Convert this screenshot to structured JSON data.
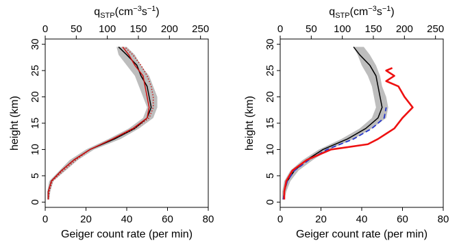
{
  "chart_data": [
    {
      "type": "line",
      "title": "",
      "xlabel": "Geiger count rate (per min)",
      "ylabel": "height (km)",
      "top_label": {
        "main": "q",
        "sub": "STP",
        "unit": "(cm",
        "exp1": "−3",
        "mid": "s",
        "exp2": "−1",
        "close": ")"
      },
      "xlim": [
        0,
        80
      ],
      "ylim": [
        -1,
        31
      ],
      "xticks": [
        "0",
        "20",
        "40",
        "60",
        "80"
      ],
      "yticks": [
        "0",
        "5",
        "10",
        "15",
        "20",
        "25",
        "30"
      ],
      "top_xticks": [
        "0",
        "50",
        "100",
        "150",
        "200",
        "250"
      ],
      "grid": false,
      "band": {
        "color": "#bdbdbd",
        "lower": [
          [
            1,
            0.5
          ],
          [
            1,
            2
          ],
          [
            2,
            4
          ],
          [
            7,
            6
          ],
          [
            12,
            8
          ],
          [
            20,
            10
          ],
          [
            31,
            12
          ],
          [
            41,
            14
          ],
          [
            48,
            16
          ],
          [
            50,
            18
          ],
          [
            48,
            20
          ],
          [
            46,
            22
          ],
          [
            44,
            24
          ],
          [
            40,
            26
          ],
          [
            36,
            28
          ],
          [
            35,
            29.5
          ]
        ],
        "upper": [
          [
            2,
            0.5
          ],
          [
            2.5,
            2
          ],
          [
            4,
            4
          ],
          [
            10,
            6
          ],
          [
            16,
            8
          ],
          [
            24,
            10
          ],
          [
            37,
            12
          ],
          [
            46,
            14
          ],
          [
            53,
            16
          ],
          [
            55,
            18
          ],
          [
            55,
            20
          ],
          [
            53,
            22
          ],
          [
            51,
            24
          ],
          [
            47,
            26
          ],
          [
            44,
            28
          ],
          [
            40,
            29.5
          ]
        ]
      },
      "series": [
        {
          "color": "#000000",
          "dash": "solid",
          "points": [
            [
              1.5,
              0.5
            ],
            [
              1.5,
              2
            ],
            [
              3,
              4
            ],
            [
              8,
              6
            ],
            [
              14,
              8
            ],
            [
              22,
              10
            ],
            [
              34,
              12
            ],
            [
              44,
              14
            ],
            [
              50,
              16
            ],
            [
              52,
              18
            ],
            [
              51,
              20
            ],
            [
              50,
              22
            ],
            [
              47,
              24
            ],
            [
              45,
              26
            ],
            [
              40,
              28
            ],
            [
              36,
              29.5
            ]
          ]
        },
        {
          "color": "#cc1111",
          "dash": "solid",
          "points": [
            [
              1.5,
              0.5
            ],
            [
              1.5,
              2
            ],
            [
              3,
              4
            ],
            [
              8,
              6
            ],
            [
              14,
              8
            ],
            [
              22,
              10
            ],
            [
              33,
              12
            ],
            [
              43,
              14
            ],
            [
              50,
              16
            ],
            [
              51,
              18
            ],
            [
              50,
              20
            ],
            [
              49,
              22
            ],
            [
              48,
              24
            ],
            [
              44,
              26
            ],
            [
              41,
              28
            ],
            [
              38,
              29.5
            ]
          ]
        },
        {
          "color": "#cc1111",
          "dash": "dotted",
          "points": [
            [
              1.5,
              0.5
            ],
            [
              2,
              2
            ],
            [
              3.5,
              4
            ],
            [
              9,
              6
            ],
            [
              15,
              8
            ],
            [
              22,
              10
            ],
            [
              33,
              12
            ],
            [
              44,
              14
            ],
            [
              51,
              16
            ],
            [
              53,
              18
            ],
            [
              53,
              20
            ],
            [
              52,
              22
            ],
            [
              50,
              24
            ],
            [
              47,
              26
            ],
            [
              43,
              28
            ],
            [
              39,
              29.5
            ]
          ]
        }
      ]
    },
    {
      "type": "line",
      "title": "",
      "xlabel": "Geiger count rate (per min)",
      "ylabel": "height (km)",
      "top_label": {
        "main": "q",
        "sub": "STP",
        "unit": "(cm",
        "exp1": "−3",
        "mid": "s",
        "exp2": "−1",
        "close": ")"
      },
      "xlim": [
        0,
        80
      ],
      "ylim": [
        -1,
        31
      ],
      "xticks": [
        "0",
        "20",
        "40",
        "60",
        "80"
      ],
      "yticks": [
        "0",
        "5",
        "10",
        "15",
        "20",
        "25",
        "30"
      ],
      "top_xticks": [
        "0",
        "50",
        "100",
        "150",
        "200",
        "250"
      ],
      "grid": false,
      "band": {
        "color": "#bdbdbd",
        "lower": [
          [
            1,
            0.5
          ],
          [
            1,
            2
          ],
          [
            2,
            4
          ],
          [
            5,
            6
          ],
          [
            11,
            8
          ],
          [
            19,
            10
          ],
          [
            30,
            12
          ],
          [
            39,
            14
          ],
          [
            45,
            16
          ],
          [
            47,
            18
          ],
          [
            46,
            20
          ],
          [
            45,
            22
          ],
          [
            43,
            24
          ],
          [
            40,
            26
          ],
          [
            38,
            28
          ],
          [
            36,
            29.5
          ]
        ],
        "upper": [
          [
            2,
            0.5
          ],
          [
            3,
            2
          ],
          [
            5,
            4
          ],
          [
            9,
            6
          ],
          [
            16,
            8
          ],
          [
            24,
            10
          ],
          [
            36,
            12
          ],
          [
            45,
            14
          ],
          [
            52,
            16
          ],
          [
            53,
            18
          ],
          [
            52,
            20
          ],
          [
            50,
            22
          ],
          [
            49,
            24
          ],
          [
            47,
            26
          ],
          [
            44,
            28
          ],
          [
            41,
            29.5
          ]
        ]
      },
      "series": [
        {
          "color": "#000000",
          "dash": "solid",
          "points": [
            [
              1.5,
              0.5
            ],
            [
              2,
              2
            ],
            [
              3.5,
              4
            ],
            [
              7,
              6
            ],
            [
              13,
              8
            ],
            [
              21,
              10
            ],
            [
              33,
              12
            ],
            [
              42,
              14
            ],
            [
              48,
              16
            ],
            [
              50,
              18
            ],
            [
              49,
              20
            ],
            [
              48,
              22
            ],
            [
              47,
              24
            ],
            [
              44,
              26
            ],
            [
              39,
              28
            ],
            [
              36,
              29.5
            ]
          ]
        },
        {
          "color": "#2233cc",
          "dash": "dashed",
          "points": [
            [
              1.5,
              0.5
            ],
            [
              2,
              2
            ],
            [
              3.5,
              4
            ],
            [
              7,
              6
            ],
            [
              14,
              8
            ],
            [
              23,
              10
            ],
            [
              36,
              12
            ],
            [
              45,
              14
            ],
            [
              51,
              16
            ],
            [
              52,
              18
            ]
          ]
        },
        {
          "color": "#ee1111",
          "dash": "solid",
          "points": [
            [
              2,
              0.5
            ],
            [
              2,
              2
            ],
            [
              3,
              4
            ],
            [
              6,
              6
            ],
            [
              13,
              8
            ],
            [
              25,
              10
            ],
            [
              43,
              11
            ],
            [
              48,
              12
            ],
            [
              52,
              13
            ],
            [
              56,
              14
            ],
            [
              60,
              16
            ],
            [
              65,
              18
            ],
            [
              61,
              20
            ],
            [
              58,
              22
            ],
            [
              52,
              23
            ],
            [
              56,
              24
            ],
            [
              52,
              25
            ],
            [
              55,
              25.5
            ]
          ]
        }
      ]
    }
  ]
}
